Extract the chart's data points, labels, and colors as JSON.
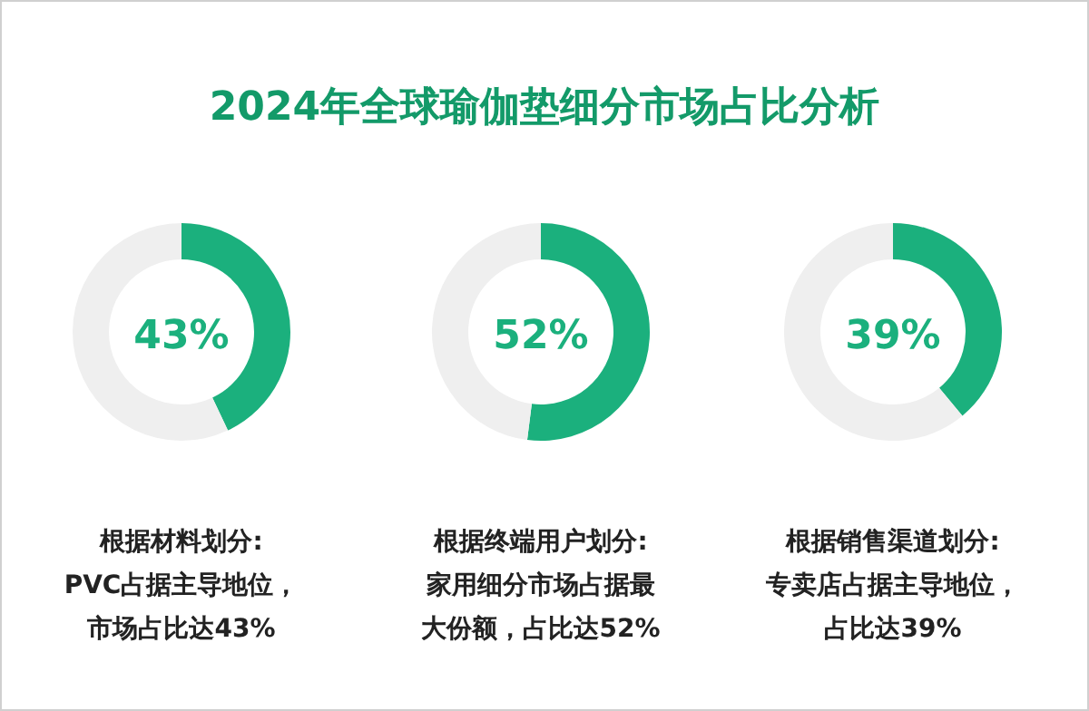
{
  "chart_data": [
    {
      "type": "donut",
      "title": "2024年全球瑜伽垫细分市场占比分析",
      "categories": [
        null,
        null
      ],
      "values": [
        43,
        57
      ],
      "colors": [
        "#1bb07d",
        "#efefef"
      ],
      "annotations": [
        "43%",
        "根据材料划分:",
        "PVC占据主导地位，",
        "市场占比达43%"
      ]
    },
    {
      "type": "donut",
      "categories": [
        null,
        null
      ],
      "values": [
        52,
        48
      ],
      "colors": [
        "#1bb07d",
        "#efefef"
      ],
      "annotations": [
        "52%",
        "根据终端用户划分:",
        "家用细分市场占据最",
        "大份额，占比达52%"
      ]
    },
    {
      "type": "donut",
      "categories": [
        null,
        null
      ],
      "values": [
        39,
        61
      ],
      "colors": [
        "#1bb07d",
        "#efefef"
      ],
      "annotations": [
        "39%",
        "根据销售渠道划分:",
        "专卖店占据主导地位，",
        "占比达39%"
      ]
    }
  ]
}
